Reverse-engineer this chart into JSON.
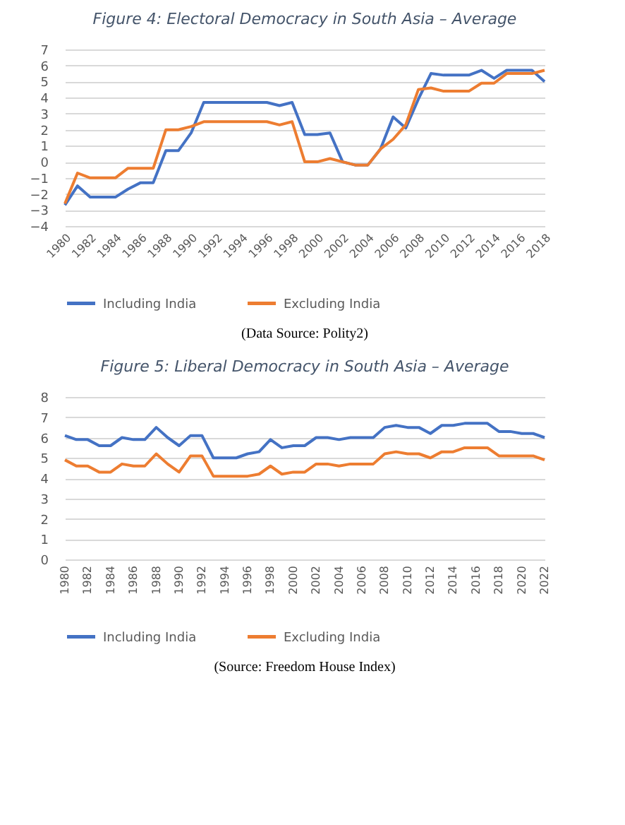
{
  "chart_data": [
    {
      "type": "line",
      "title": "Figure 4: Electoral Democracy in South Asia – Average",
      "x": [
        1980,
        1981,
        1982,
        1983,
        1984,
        1985,
        1986,
        1987,
        1988,
        1989,
        1990,
        1991,
        1992,
        1993,
        1994,
        1995,
        1996,
        1997,
        1998,
        1999,
        2000,
        2001,
        2002,
        2003,
        2004,
        2005,
        2006,
        2007,
        2008,
        2009,
        2010,
        2011,
        2012,
        2013,
        2014,
        2015,
        2016,
        2017,
        2018
      ],
      "series": [
        {
          "name": "Including India",
          "color": "#4472c4",
          "values": [
            -2.7,
            -1.5,
            -2.2,
            -2.2,
            -2.2,
            -1.7,
            -1.3,
            -1.3,
            0.7,
            0.7,
            1.8,
            3.7,
            3.7,
            3.7,
            3.7,
            3.7,
            3.7,
            3.5,
            3.7,
            1.7,
            1.7,
            1.8,
            0,
            -0.2,
            -0.2,
            0.8,
            2.8,
            2.1,
            3.9,
            5.5,
            5.4,
            5.4,
            5.4,
            5.7,
            5.2,
            5.7,
            5.7,
            5.7,
            5.0
          ]
        },
        {
          "name": "Excluding India",
          "color": "#ed7d31",
          "values": [
            -2.6,
            -0.7,
            -1.0,
            -1.0,
            -1.0,
            -0.4,
            -0.4,
            -0.4,
            2.0,
            2.0,
            2.2,
            2.5,
            2.5,
            2.5,
            2.5,
            2.5,
            2.5,
            2.3,
            2.5,
            0,
            0,
            0.2,
            0,
            -0.2,
            -0.2,
            0.8,
            1.4,
            2.3,
            4.5,
            4.6,
            4.4,
            4.4,
            4.4,
            4.9,
            4.9,
            5.5,
            5.5,
            5.5,
            5.7
          ]
        }
      ],
      "xlim": [
        1980,
        2018
      ],
      "xticks": [
        1980,
        1982,
        1984,
        1986,
        1988,
        1990,
        1992,
        1994,
        1996,
        1998,
        2000,
        2002,
        2004,
        2006,
        2008,
        2010,
        2012,
        2014,
        2016,
        2018
      ],
      "ylim": [
        -4,
        7
      ],
      "yticks": [
        -4,
        -3,
        -2,
        -1,
        0,
        1,
        2,
        3,
        4,
        5,
        6,
        7
      ],
      "grid": "y",
      "legend": "bottom",
      "marker": "none",
      "line_style": "solid",
      "annotations": [
        "(Data Source: Polity2)"
      ]
    },
    {
      "type": "line",
      "title": "Figure 5: Liberal Democracy in South Asia – Average",
      "x": [
        1980,
        1981,
        1982,
        1983,
        1984,
        1985,
        1986,
        1987,
        1988,
        1989,
        1990,
        1991,
        1992,
        1993,
        1994,
        1995,
        1996,
        1997,
        1998,
        1999,
        2000,
        2001,
        2002,
        2003,
        2004,
        2005,
        2006,
        2007,
        2008,
        2009,
        2010,
        2011,
        2012,
        2013,
        2014,
        2015,
        2016,
        2017,
        2018,
        2019,
        2020,
        2021,
        2022
      ],
      "series": [
        {
          "name": "Including India",
          "color": "#4472c4",
          "values": [
            6.1,
            5.9,
            5.9,
            5.6,
            5.6,
            6.0,
            5.9,
            5.9,
            6.5,
            6.0,
            5.6,
            6.1,
            6.1,
            5.0,
            5.0,
            5.0,
            5.2,
            5.3,
            5.9,
            5.5,
            5.6,
            5.6,
            6.0,
            6.0,
            5.9,
            6.0,
            6.0,
            6.0,
            6.5,
            6.6,
            6.5,
            6.5,
            6.2,
            6.6,
            6.6,
            6.7,
            6.7,
            6.7,
            6.3,
            6.3,
            6.2,
            6.2,
            6.0
          ]
        },
        {
          "name": "Excluding India",
          "color": "#ed7d31",
          "values": [
            4.9,
            4.6,
            4.6,
            4.3,
            4.3,
            4.7,
            4.6,
            4.6,
            5.2,
            4.7,
            4.3,
            5.1,
            5.1,
            4.1,
            4.1,
            4.1,
            4.1,
            4.2,
            4.6,
            4.2,
            4.3,
            4.3,
            4.7,
            4.7,
            4.6,
            4.7,
            4.7,
            4.7,
            5.2,
            5.3,
            5.2,
            5.2,
            5.0,
            5.3,
            5.3,
            5.5,
            5.5,
            5.5,
            5.1,
            5.1,
            5.1,
            5.1,
            4.9
          ]
        }
      ],
      "xlim": [
        1980,
        2022
      ],
      "xticks": [
        1980,
        1982,
        1984,
        1986,
        1988,
        1990,
        1992,
        1994,
        1996,
        1998,
        2000,
        2002,
        2004,
        2006,
        2008,
        2010,
        2012,
        2014,
        2016,
        2018,
        2020,
        2022
      ],
      "ylim": [
        0,
        8
      ],
      "yticks": [
        0,
        1,
        2,
        3,
        4,
        5,
        6,
        7,
        8
      ],
      "grid": "y",
      "legend": "bottom",
      "marker": "none",
      "line_style": "solid",
      "annotations": [
        "(Source: Freedom House Index)"
      ]
    }
  ]
}
